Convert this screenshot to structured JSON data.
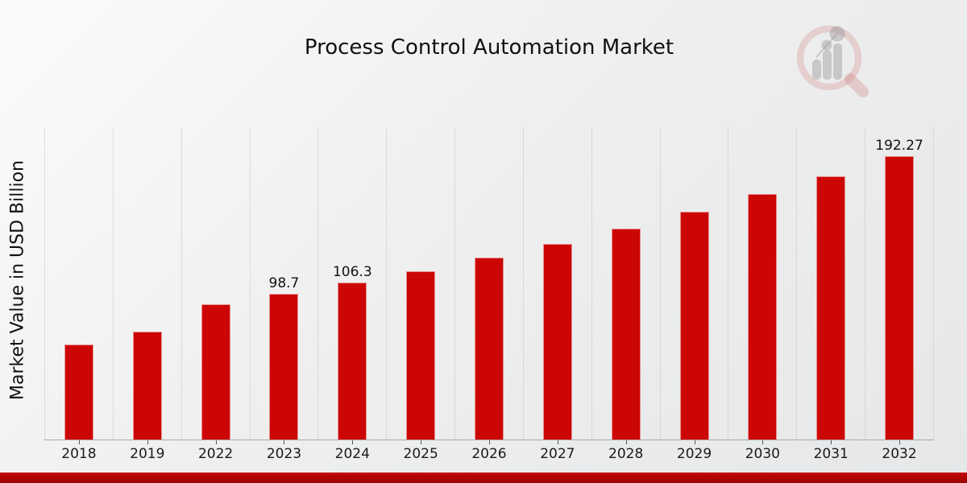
{
  "title": "Process Control Automation Market",
  "y_axis_label": "Market Value in USD Billion",
  "watermark": "market-research-future-logo",
  "colors": {
    "bar": "#cc0505",
    "band_top": "#c50404",
    "band_bottom": "#9c0202",
    "gridline": "#c4c4c4",
    "axis_line": "#a8a8a8",
    "text": "#1a1a1a",
    "logo_ring": "rgba(205,110,110,0.24)",
    "logo_bars": "rgba(140,140,145,0.38)"
  },
  "chart_data": {
    "type": "bar",
    "title": "Process Control Automation Market",
    "xlabel": "",
    "ylabel": "Market Value in USD Billion",
    "categories": [
      "2018",
      "2019",
      "2022",
      "2023",
      "2024",
      "2025",
      "2026",
      "2027",
      "2028",
      "2029",
      "2030",
      "2031",
      "2032"
    ],
    "values": [
      64.6,
      73.4,
      91.9,
      98.7,
      106.3,
      114.1,
      123.2,
      132.9,
      143.2,
      154.4,
      166.4,
      178.5,
      192.27
    ],
    "data_labels": [
      null,
      null,
      null,
      "98.7",
      "106.3",
      null,
      null,
      null,
      null,
      null,
      null,
      null,
      "192.27"
    ],
    "ylim": [
      0,
      211.3
    ],
    "grid": "vertical-dashed",
    "legend": "none",
    "bar_color": "#cc0505"
  }
}
